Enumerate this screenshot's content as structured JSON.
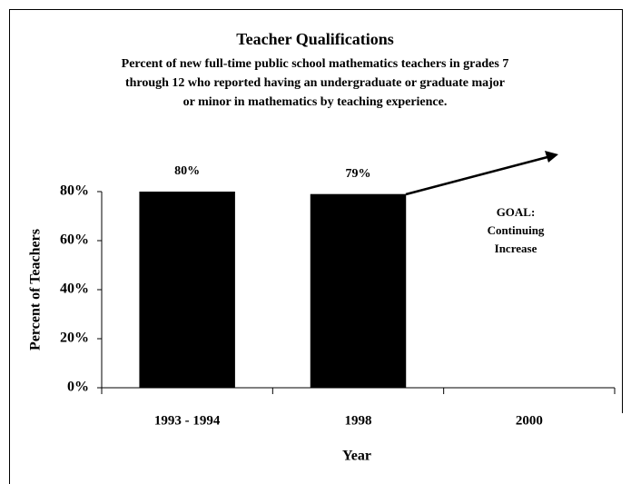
{
  "chart_data": {
    "type": "bar",
    "title": "Teacher Qualifications",
    "subtitle": [
      "Percent of new full-time public school mathematics teachers in grades 7",
      "through 12 who reported having an undergraduate or graduate major",
      "or minor in mathematics by teaching experience."
    ],
    "x_label": "Year",
    "y_label": "Percent of Teachers",
    "categories": [
      "1993 - 1994",
      "1998",
      "2000"
    ],
    "values": [
      80,
      79,
      null
    ],
    "value_labels": [
      "80%",
      "79%",
      null
    ],
    "color": "#000000",
    "ylim": [
      0,
      80
    ],
    "yticks": [
      {
        "value": 0,
        "label": "0%"
      },
      {
        "value": 20,
        "label": "20%"
      },
      {
        "value": 40,
        "label": "40%"
      },
      {
        "value": 60,
        "label": "60%"
      },
      {
        "value": 80,
        "label": "80%"
      }
    ],
    "annotation": [
      "GOAL:",
      "Continuing",
      "Increase"
    ]
  }
}
